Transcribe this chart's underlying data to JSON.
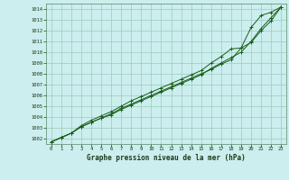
{
  "title": "Graphe pression niveau de la mer (hPa)",
  "bg_color": "#cceeee",
  "plot_bg_color": "#cceeee",
  "grid_color": "#99ccbb",
  "line_color": "#1a5e1a",
  "xlim": [
    -0.5,
    23.5
  ],
  "ylim": [
    1001.5,
    1014.5
  ],
  "xticks": [
    0,
    1,
    2,
    3,
    4,
    5,
    6,
    7,
    8,
    9,
    10,
    11,
    12,
    13,
    14,
    15,
    16,
    17,
    18,
    19,
    20,
    21,
    22,
    23
  ],
  "yticks": [
    1002,
    1003,
    1004,
    1005,
    1006,
    1007,
    1008,
    1009,
    1010,
    1011,
    1012,
    1013,
    1014
  ],
  "series1_x": [
    0,
    1,
    2,
    3,
    4,
    5,
    6,
    7,
    8,
    9,
    10,
    11,
    12,
    13,
    14,
    15,
    16,
    17,
    18,
    19,
    20,
    21,
    22,
    23
  ],
  "series1_y": [
    1001.7,
    1002.1,
    1002.5,
    1003.1,
    1003.5,
    1003.9,
    1004.2,
    1004.7,
    1005.1,
    1005.5,
    1005.9,
    1006.3,
    1006.7,
    1007.1,
    1007.5,
    1007.9,
    1008.5,
    1009.0,
    1009.5,
    1010.0,
    1011.0,
    1012.2,
    1013.2,
    1014.2
  ],
  "series2_x": [
    0,
    1,
    2,
    3,
    4,
    5,
    6,
    7,
    8,
    9,
    10,
    11,
    12,
    13,
    14,
    15,
    16,
    17,
    18,
    19,
    20,
    21,
    22,
    23
  ],
  "series2_y": [
    1001.7,
    1002.1,
    1002.5,
    1003.1,
    1003.5,
    1003.9,
    1004.3,
    1004.8,
    1005.2,
    1005.6,
    1006.0,
    1006.4,
    1006.8,
    1007.2,
    1007.6,
    1008.0,
    1008.4,
    1008.9,
    1009.3,
    1010.4,
    1012.3,
    1013.4,
    1013.7,
    1014.2
  ],
  "series3_x": [
    0,
    1,
    2,
    3,
    4,
    5,
    6,
    7,
    8,
    9,
    10,
    11,
    12,
    13,
    14,
    15,
    16,
    17,
    18,
    19,
    20,
    21,
    22,
    23
  ],
  "series3_y": [
    1001.7,
    1002.1,
    1002.5,
    1003.2,
    1003.7,
    1004.1,
    1004.5,
    1005.0,
    1005.5,
    1005.9,
    1006.3,
    1006.7,
    1007.1,
    1007.5,
    1007.9,
    1008.3,
    1009.0,
    1009.6,
    1010.3,
    1010.4,
    1010.9,
    1012.0,
    1012.9,
    1014.2
  ]
}
